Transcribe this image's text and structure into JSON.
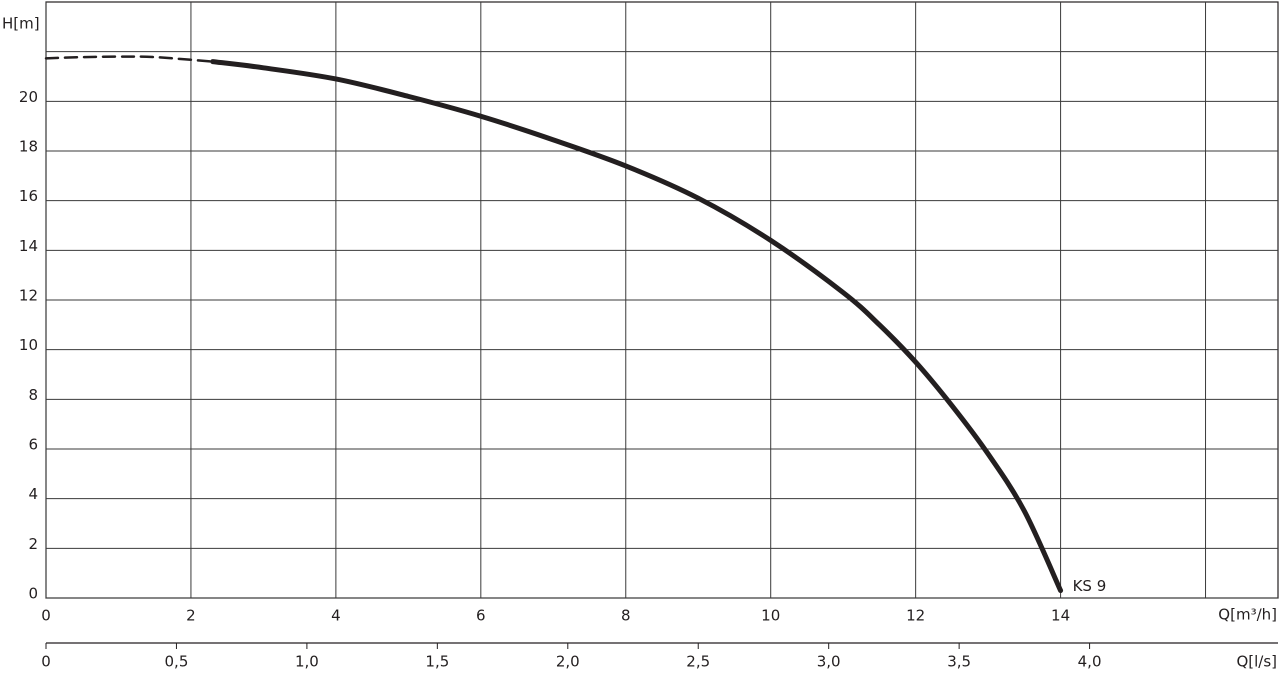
{
  "chart_data": {
    "type": "line",
    "ylabel": "H[m]",
    "xlabel": "Q[m³/h]",
    "x2label": "Q[l/s]",
    "xlim": [
      0,
      17
    ],
    "xticks": [
      0,
      2,
      4,
      6,
      8,
      10,
      12,
      14
    ],
    "xgrid_extra": [
      16
    ],
    "ylim": [
      0,
      24
    ],
    "yticks": [
      0,
      2,
      4,
      6,
      8,
      10,
      12,
      14,
      16,
      18,
      20
    ],
    "ygrid_extra": [
      22
    ],
    "x2lim": [
      0,
      4.7222
    ],
    "x2ticks": [
      0,
      {
        "value": 0.5,
        "label": "0,5"
      },
      {
        "value": 1.0,
        "label": "1,0"
      },
      {
        "value": 1.5,
        "label": "1,5"
      },
      {
        "value": 2.0,
        "label": "2,0"
      },
      {
        "value": 2.5,
        "label": "2,5"
      },
      {
        "value": 3.0,
        "label": "3,0"
      },
      {
        "value": 3.5,
        "label": "3,5"
      },
      {
        "value": 4.0,
        "label": "4,0"
      }
    ],
    "grid": true,
    "series": [
      {
        "name": "KS 9",
        "color": "#231f20",
        "dashed_x": [
          0,
          0.5,
          1,
          1.5,
          2.3
        ],
        "dashed_values": [
          21.73,
          21.78,
          21.8,
          21.78,
          21.6
        ],
        "x": [
          2.3,
          3,
          4,
          5,
          6,
          7,
          8,
          9,
          10,
          11,
          11.5,
          12,
          12.5,
          13,
          13.5,
          14
        ],
        "values": [
          21.6,
          21.35,
          20.9,
          20.2,
          19.4,
          18.45,
          17.4,
          16.1,
          14.4,
          12.3,
          11.0,
          9.5,
          7.75,
          5.8,
          3.5,
          0.3
        ]
      }
    ]
  }
}
